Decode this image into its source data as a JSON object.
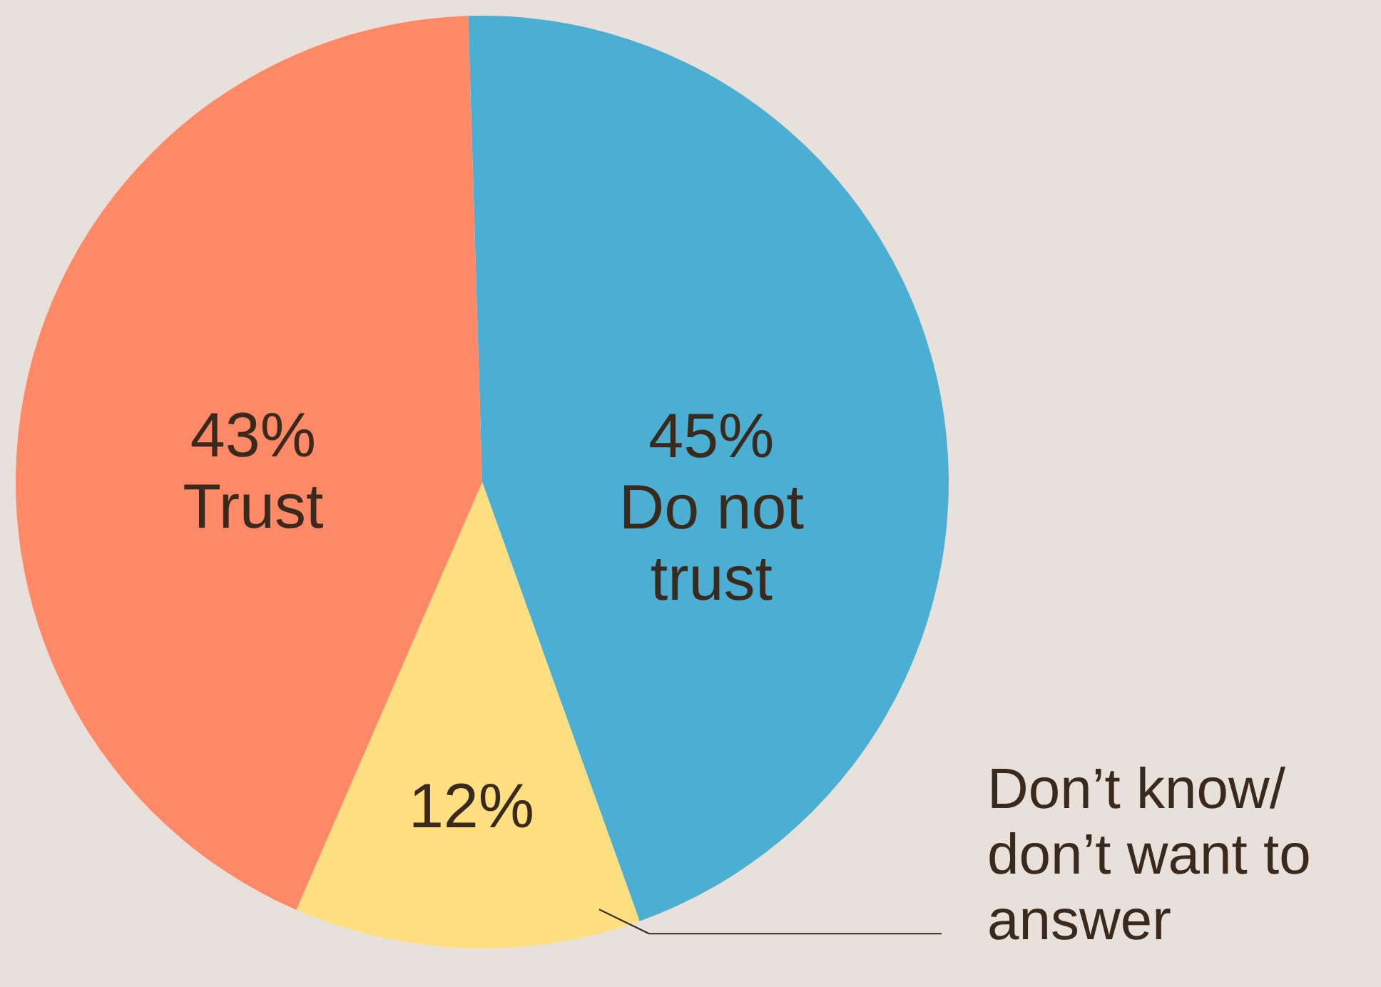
{
  "chart_data": {
    "type": "pie",
    "categories": [
      "Do not trust",
      "Don’t know/ don’t want to answer",
      "Trust"
    ],
    "values": [
      45,
      12,
      43
    ],
    "colors": [
      "#4bafd3",
      "#ffdf80",
      "#ff8866"
    ],
    "value_labels": [
      "45%",
      "12%",
      "43%"
    ],
    "legend": false
  }
}
